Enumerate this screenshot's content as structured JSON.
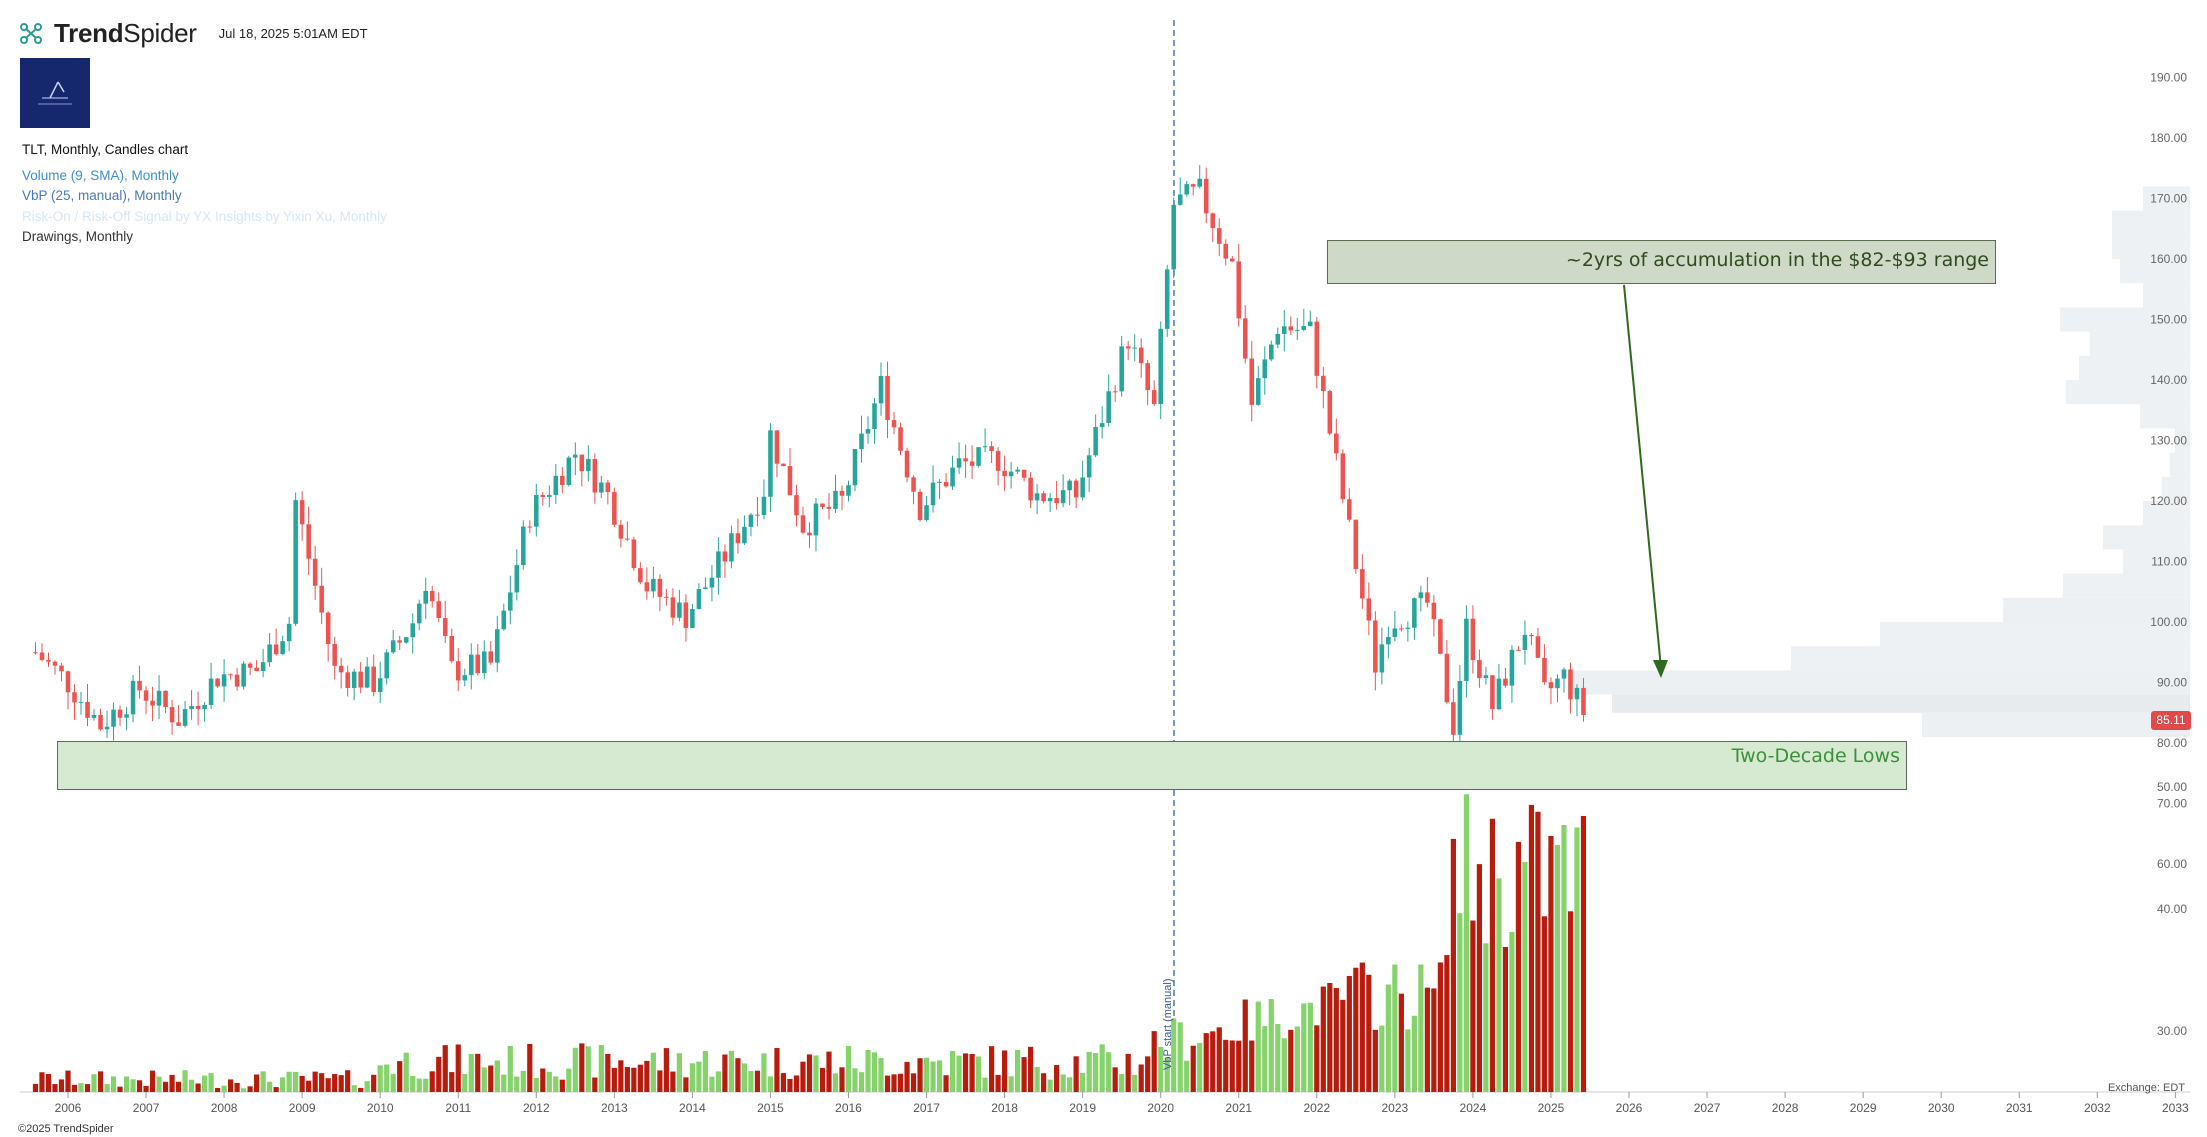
{
  "header": {
    "brand_a": "Trend",
    "brand_b": "Spider",
    "timestamp": "Jul 18, 2025 5:01AM EDT"
  },
  "legend": {
    "main": "TLT, Monthly, Candles chart",
    "volume": "Volume (9, SMA), Monthly",
    "vbp": "VbP (25, manual), Monthly",
    "signal": "Risk-On / Risk-Off Signal by YX Insights by Yixin Xu, Monthly",
    "drawings": "Drawings, Monthly"
  },
  "annotations": {
    "accumulation": "~2yrs of accumulation in the $82-$93 range",
    "lows": "Two-Decade Lows",
    "vbp_start": "VbP start (manual)"
  },
  "last_price": "85.11",
  "footer": {
    "copyright": "©2025 TrendSpider",
    "exchange": "Exchange: EDT"
  },
  "colors": {
    "up": "#26a69a",
    "down": "#ef5350",
    "vol_up": "#86d36c",
    "vol_down": "#b71c0c",
    "vbp": "#eceff1"
  },
  "chart_data": {
    "type": "candlestick",
    "ticker": "TLT",
    "interval": "Monthly",
    "ylim": [
      60,
      190
    ],
    "y_ticks": [
      190,
      180,
      170,
      160,
      150,
      140,
      130,
      120,
      110,
      100,
      90,
      80,
      70,
      60
    ],
    "volume_ticks": [
      50,
      40,
      30
    ],
    "x_ticks": [
      "2006",
      "2007",
      "2008",
      "2009",
      "2010",
      "2011",
      "2012",
      "2013",
      "2014",
      "2015",
      "2016",
      "2017",
      "2018",
      "2019",
      "2020",
      "2021",
      "2022",
      "2023",
      "2024",
      "2025",
      "2026",
      "2027",
      "2028",
      "2029",
      "2030",
      "2031",
      "2032",
      "2033"
    ],
    "price_close": {
      "2005-08": 95,
      "2006-01": 90,
      "2006-06": 83,
      "2006-12": 89,
      "2007-06": 84,
      "2007-12": 91,
      "2008-06": 92,
      "2008-11": 100,
      "2008-12": 120,
      "2009-06": 92,
      "2009-12": 90,
      "2010-06": 100,
      "2010-08": 107,
      "2010-12": 92,
      "2011-06": 93,
      "2011-12": 118,
      "2012-07": 128,
      "2012-12": 121,
      "2013-06": 106,
      "2013-12": 101,
      "2014-06": 111,
      "2014-12": 122,
      "2015-01": 131,
      "2015-06": 116,
      "2015-12": 120,
      "2016-06": 139,
      "2016-12": 119,
      "2017-06": 126,
      "2017-12": 127,
      "2018-06": 121,
      "2018-12": 121,
      "2019-08": 147,
      "2019-12": 135,
      "2020-03": 169,
      "2020-07": 171,
      "2020-12": 159,
      "2021-03": 136,
      "2021-07": 149,
      "2021-12": 148,
      "2022-06": 115,
      "2022-10": 93,
      "2022-12": 100,
      "2023-06": 103,
      "2023-10": 83,
      "2023-12": 99,
      "2024-04": 86,
      "2024-09": 99,
      "2024-12": 88,
      "2025-03": 91,
      "2025-06": 85.11
    },
    "volume_levels": {
      "2006-2010": "low",
      "2011-08": 34,
      "2019-12": 30,
      "2023-10": 51,
      "2024-09": 46,
      "2025-04": 50
    },
    "last_price": 85.11
  }
}
